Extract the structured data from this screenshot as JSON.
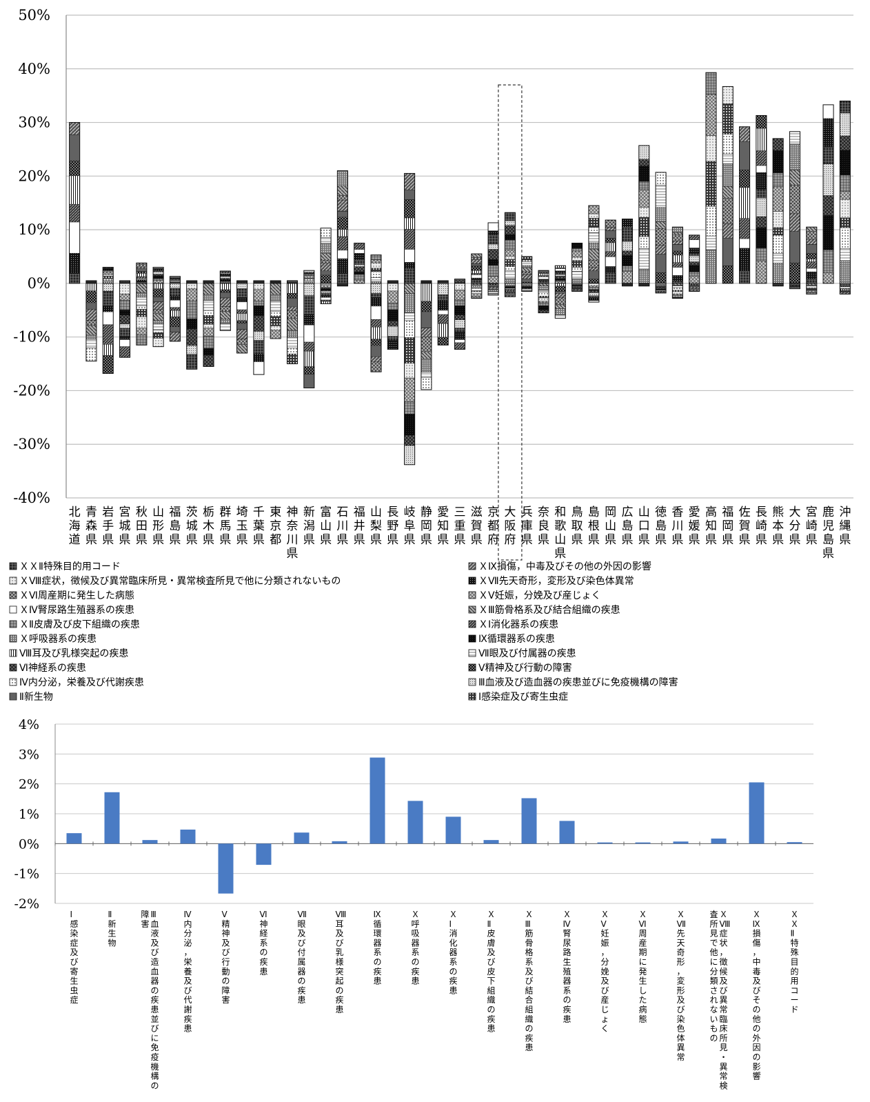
{
  "chart_data": [
    {
      "type": "bar",
      "stacked": true,
      "title": "",
      "xlabel": "",
      "ylabel": "",
      "ylim": [
        -0.4,
        0.5
      ],
      "y_ticks": [
        "50%",
        "40%",
        "30%",
        "20%",
        "10%",
        "0%",
        "-10%",
        "-20%",
        "-30%",
        "-40%"
      ],
      "grid": true,
      "highlighted_category": "大阪府",
      "highlight_top": 0.37,
      "categories": [
        "北海道",
        "青森県",
        "岩手県",
        "宮城県",
        "秋田県",
        "山形県",
        "福島県",
        "茨城県",
        "栃木県",
        "群馬県",
        "埼玉県",
        "千葉県",
        "東京都",
        "神奈川県",
        "新潟県",
        "富山県",
        "石川県",
        "福井県",
        "山梨県",
        "長野県",
        "岐阜県",
        "静岡県",
        "愛知県",
        "三重県",
        "滋賀県",
        "京都府",
        "大阪府",
        "兵庫県",
        "奈良県",
        "和歌山県",
        "鳥取県",
        "島根県",
        "岡山県",
        "広島県",
        "山口県",
        "徳島県",
        "香川県",
        "愛媛県",
        "高知県",
        "福岡県",
        "佐賀県",
        "長崎県",
        "熊本県",
        "大分県",
        "宮崎県",
        "鹿児島県",
        "沖縄県"
      ],
      "positive_totals": [
        0.3,
        0.005,
        0.03,
        0.005,
        0.038,
        0.03,
        0.013,
        0.005,
        0.005,
        0.023,
        0.005,
        0.005,
        0.005,
        0.005,
        0.024,
        0.103,
        0.21,
        0.075,
        0.053,
        0.005,
        0.205,
        0.005,
        0.005,
        0.008,
        0.055,
        0.113,
        0.132,
        0.05,
        0.024,
        0.033,
        0.075,
        0.145,
        0.118,
        0.12,
        0.257,
        0.207,
        0.105,
        0.09,
        0.393,
        0.367,
        0.292,
        0.313,
        0.27,
        0.283,
        0.105,
        0.333,
        0.34
      ],
      "negative_totals": [
        0.0,
        -0.145,
        -0.168,
        -0.138,
        -0.115,
        -0.118,
        -0.108,
        -0.16,
        -0.155,
        -0.088,
        -0.13,
        -0.17,
        -0.103,
        -0.15,
        -0.195,
        -0.038,
        -0.005,
        0.0,
        -0.165,
        -0.123,
        -0.338,
        -0.198,
        -0.115,
        -0.123,
        -0.028,
        -0.022,
        -0.025,
        -0.015,
        -0.055,
        -0.065,
        -0.015,
        -0.035,
        0.0,
        -0.005,
        -0.005,
        -0.018,
        -0.028,
        -0.015,
        0.0,
        0.0,
        0.0,
        0.0,
        -0.005,
        -0.01,
        -0.02,
        0.0,
        -0.02
      ],
      "legend": [
        {
          "name": "ＸＸⅡ特殊目的用コード",
          "pattern": "grid-dark"
        },
        {
          "name": "ＸⅨ損傷，中毒及びその他の外因の影響",
          "pattern": "hatch-box"
        },
        {
          "name": "ＸⅧ症状，徴候及び異常臨床所見・異常検査所見で他に分類されないもの",
          "pattern": "light-box"
        },
        {
          "name": "ＸⅦ先天奇形，変形及び染色体異常",
          "pattern": "dark-dot"
        },
        {
          "name": "ＸⅥ周産期に発生した病態",
          "pattern": "cross-dark"
        },
        {
          "name": "ＸⅤ妊娠，分娩及び産じょく",
          "pattern": "cross-light"
        },
        {
          "name": "ＸⅣ腎尿路生殖器系の疾患",
          "pattern": "empty"
        },
        {
          "name": "ＸⅢ筋骨格系及び結合組織の疾患",
          "pattern": "diag-box"
        },
        {
          "name": "ＸⅡ皮膚及び皮下組織の疾患",
          "pattern": "grid-box"
        },
        {
          "name": "ＸⅠ消化器系の疾患",
          "pattern": "diag-dark"
        },
        {
          "name": "Ｘ呼吸器系の疾患",
          "pattern": "dot-box"
        },
        {
          "name": "Ⅸ循環器系の疾患",
          "pattern": "solid-dark"
        },
        {
          "name": "Ⅷ耳及び乳様突起の疾患",
          "pattern": "vert-lines"
        },
        {
          "name": "Ⅶ眼及び付属器の疾患",
          "pattern": "white-lines"
        },
        {
          "name": "Ⅵ神経系の疾患",
          "pattern": "hatch-dark"
        },
        {
          "name": "Ⅴ精神及び行動の障害",
          "pattern": "check-dark"
        },
        {
          "name": "Ⅳ内分泌，栄養及び代謝疾患",
          "pattern": "dot-light"
        },
        {
          "name": "Ⅲ血液及び造血器の疾患並びに免疫機構の障害",
          "pattern": "light-dot"
        },
        {
          "name": "Ⅱ新生物",
          "pattern": "hbars"
        },
        {
          "name": "Ⅰ感染症及び寄生虫症",
          "pattern": "dot-ring"
        }
      ]
    },
    {
      "type": "bar",
      "title": "",
      "xlabel": "",
      "ylabel": "",
      "ylim": [
        -0.02,
        0.04
      ],
      "y_ticks": [
        "4%",
        "3%",
        "2%",
        "1%",
        "0%",
        "-1%",
        "-2%"
      ],
      "grid": true,
      "color": "#4a7bc4",
      "categories": [
        "Ⅰ感染症及び寄生虫症",
        "Ⅱ新生物",
        "Ⅲ血液及び造血器の疾患並びに免疫機構の障害",
        "Ⅳ内分泌，栄養及び代謝疾患",
        "Ⅴ精神及び行動の障害",
        "Ⅵ神経系の疾患",
        "Ⅶ眼及び付属器の疾患",
        "Ⅷ耳及び乳様突起の疾患",
        "Ⅸ循環器系の疾患",
        "Ｘ呼吸器系の疾患",
        "ＸⅠ消化器系の疾患",
        "ＸⅡ皮膚及び皮下組織の疾患",
        "ＸⅢ筋骨格系及び結合組織の疾患",
        "ＸⅣ腎尿路生殖器系の疾患",
        "ＸⅤ妊娠，分娩及び産じょく",
        "ＸⅥ周産期に発生した病態",
        "ＸⅦ先天奇形，変形及び染色体異常",
        "ＸⅧ症状，徴候及び異常臨床所見・異常検査所見で他に分類されないもの",
        "ＸⅨ損傷，中毒及びその他の外因の影響",
        "ＸＸⅡ特殊目的用コード"
      ],
      "values": [
        0.0035,
        0.0172,
        0.0012,
        0.0047,
        -0.0167,
        -0.0071,
        0.0037,
        0.0008,
        0.0288,
        0.0143,
        0.009,
        0.0012,
        0.0152,
        0.0076,
        0.0004,
        0.0004,
        0.0007,
        0.0017,
        0.0205,
        0.0005
      ]
    }
  ]
}
